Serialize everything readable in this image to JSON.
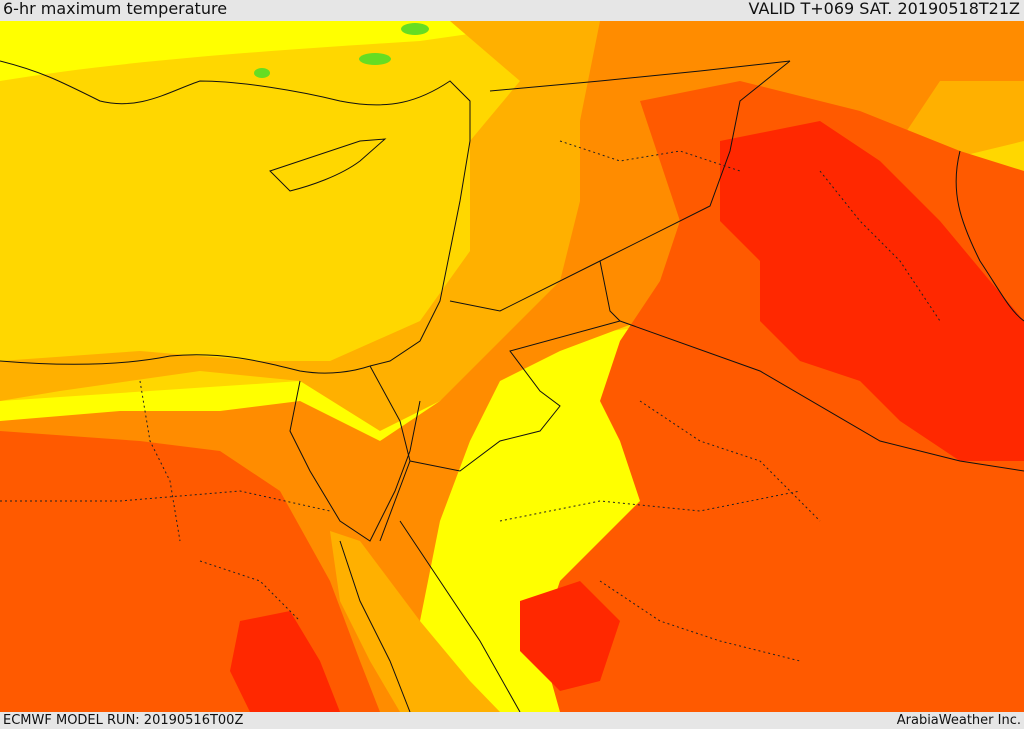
{
  "header": {
    "title": "6-hr maximum temperature",
    "valid": "VALID T+069 SAT. 20190518T21Z"
  },
  "footer": {
    "model_run": "ECMWF MODEL RUN: 20190516T00Z",
    "credit": "ArabiaWeather Inc."
  },
  "colors": {
    "sea_yellow": "#ffff00",
    "gold": "#ffd700",
    "amber": "#ffb000",
    "orange": "#ff8c00",
    "red_orange": "#ff5a00",
    "red": "#ff2800",
    "green": "#66dd22",
    "border": "#111111"
  }
}
